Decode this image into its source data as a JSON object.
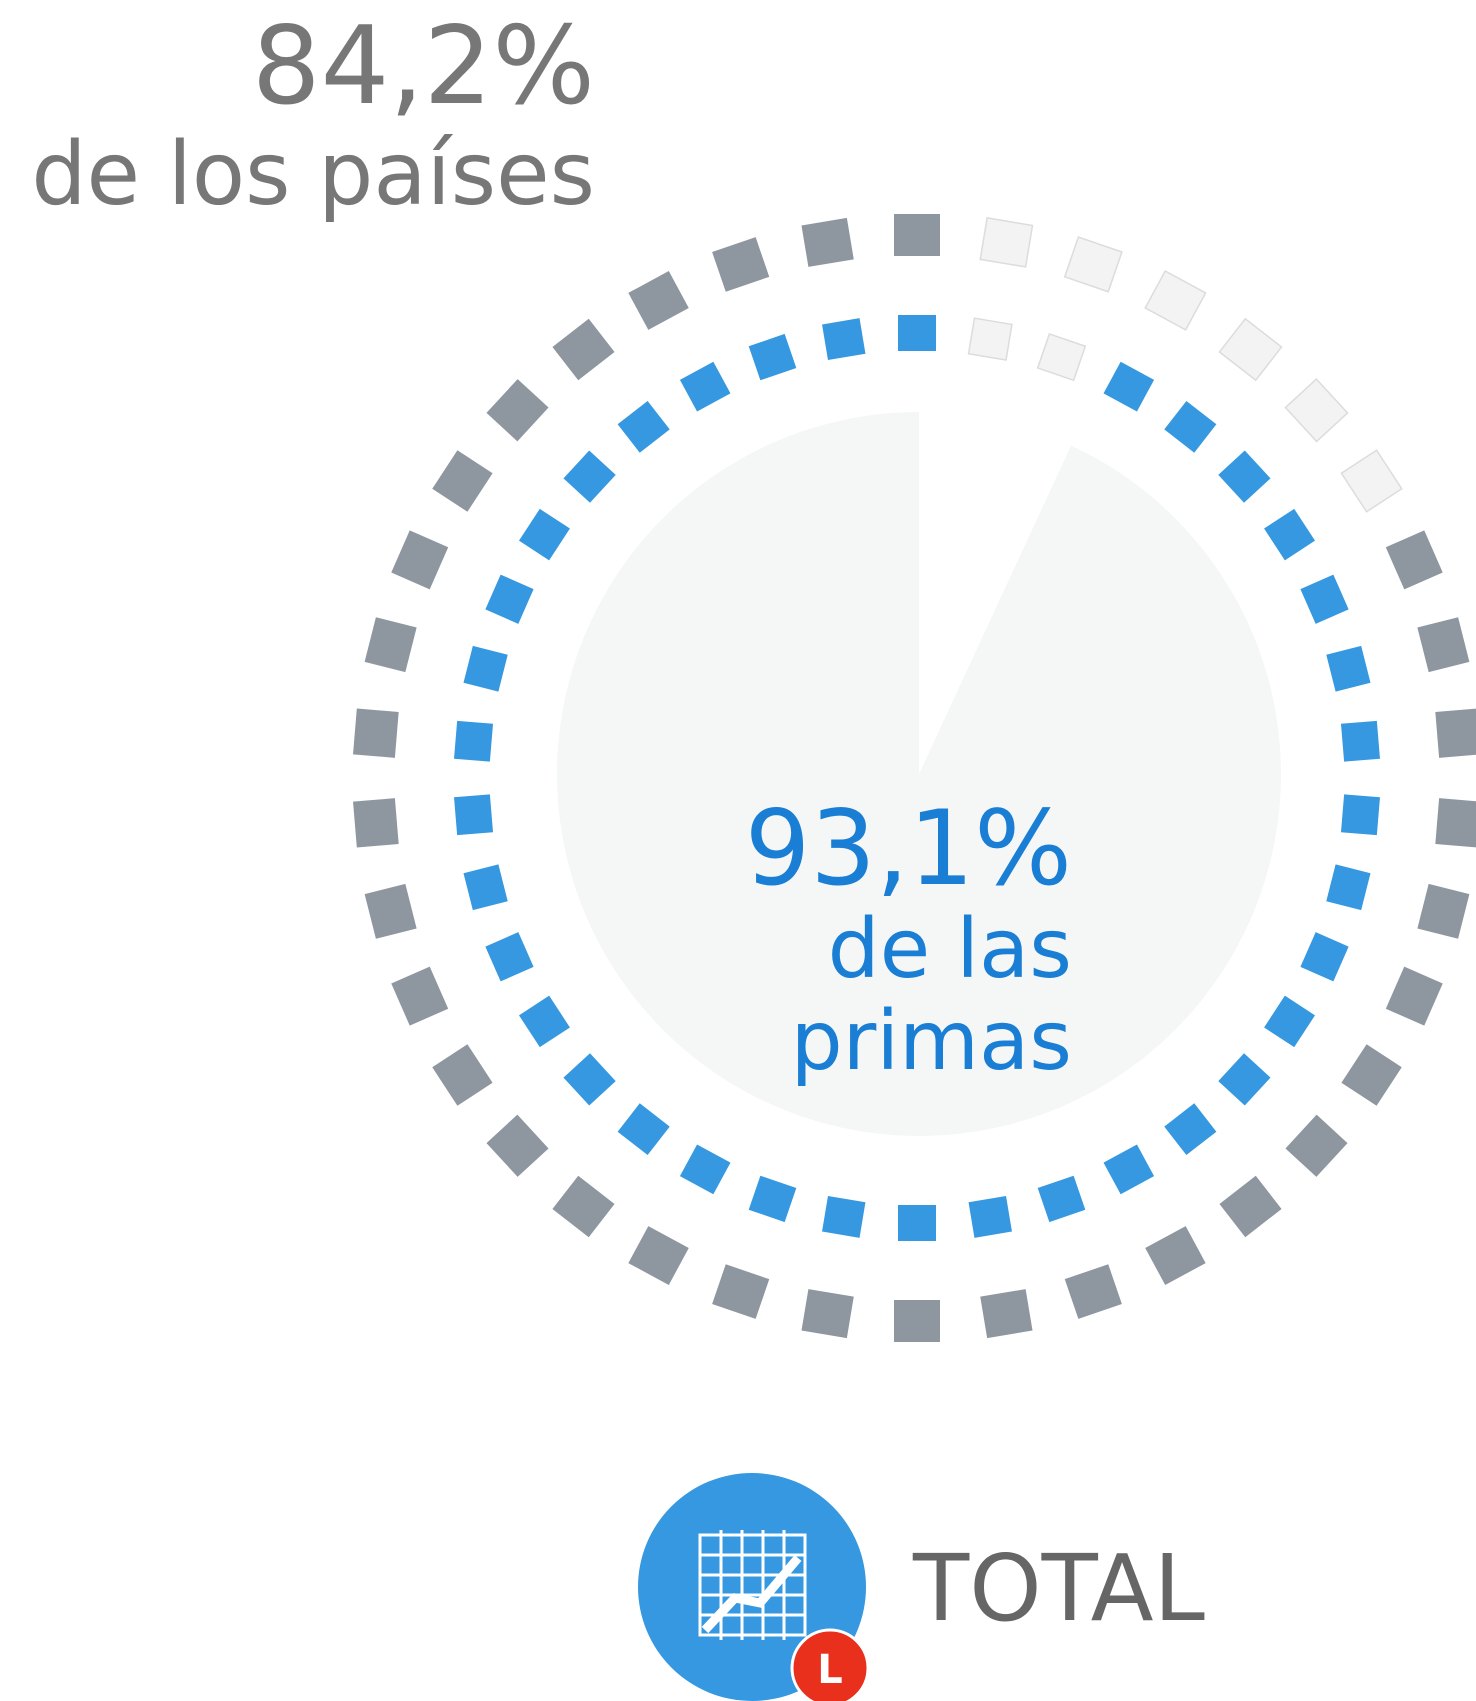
{
  "chart_data": {
    "type": "radial",
    "values": [
      84.2,
      93.1
    ],
    "value_labels": [
      "84,2%",
      "93,1%"
    ],
    "captions": [
      [
        "de los países"
      ],
      [
        "de las",
        "primas"
      ]
    ],
    "colors": [
      "#8e96a0",
      "#3598e0"
    ],
    "legend": {
      "label": "TOTAL",
      "badge": "L"
    }
  }
}
